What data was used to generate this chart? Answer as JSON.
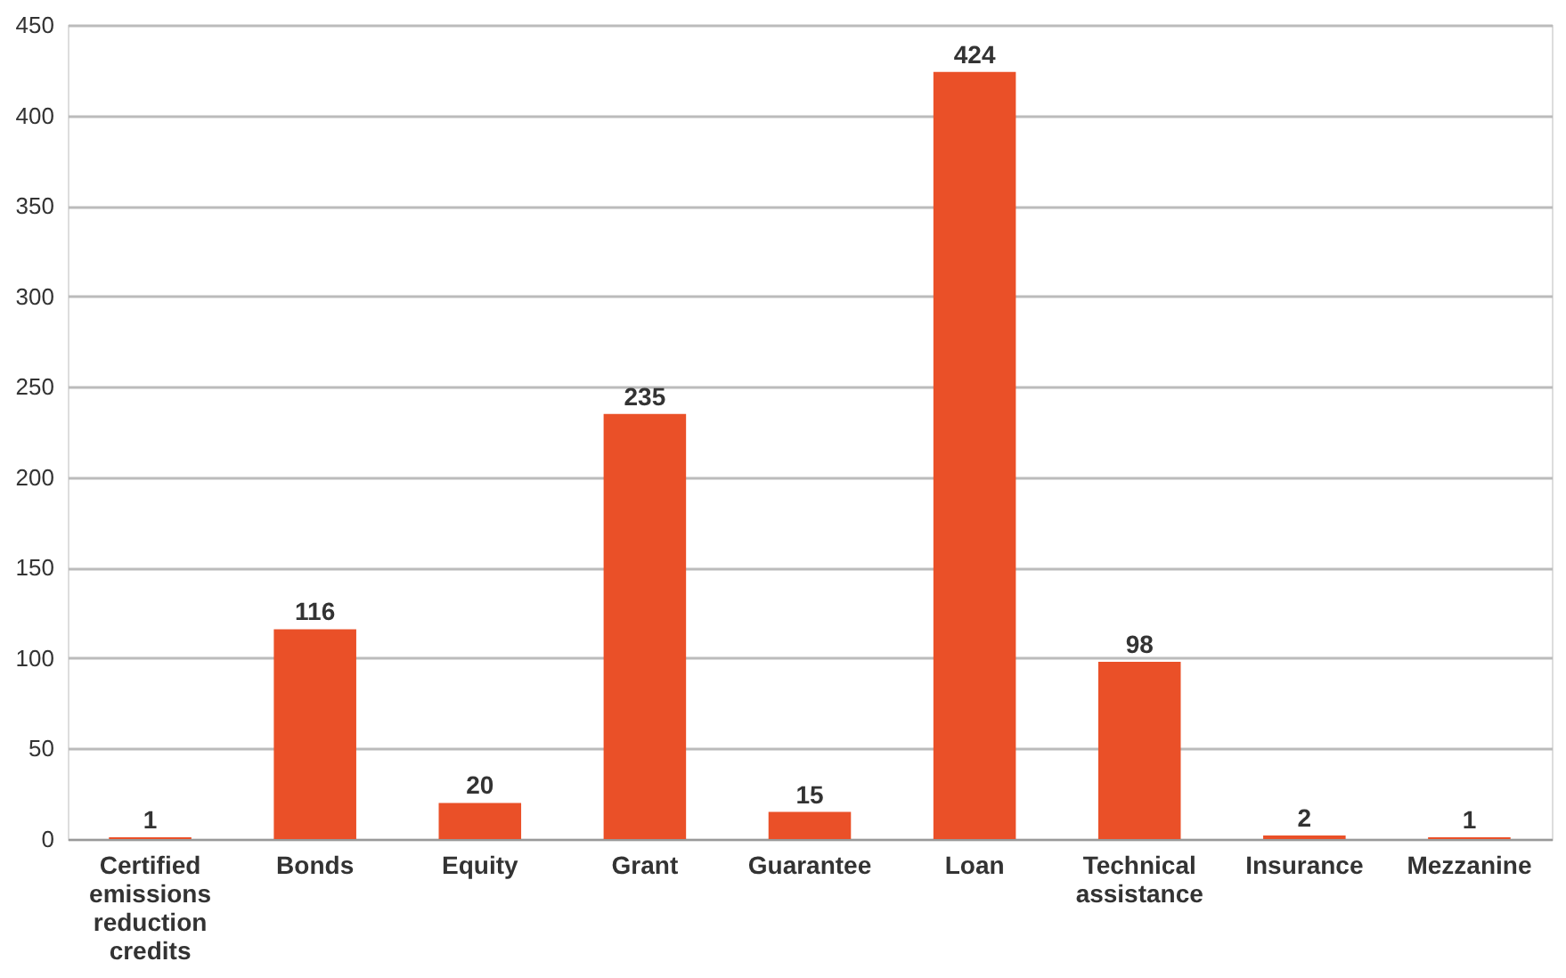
{
  "chart_data": {
    "type": "bar",
    "categories": [
      "Certified emissions reduction credits",
      "Bonds",
      "Equity",
      "Grant",
      "Guarantee",
      "Loan",
      "Technical assistance",
      "Insurance",
      "Mezzanine"
    ],
    "values": [
      1,
      116,
      20,
      235,
      15,
      424,
      98,
      2,
      1
    ],
    "color": "#ea5028",
    "ylim": [
      0,
      450
    ],
    "yticks": [
      0,
      50,
      100,
      150,
      200,
      250,
      300,
      350,
      400,
      450
    ],
    "grid": "y",
    "data_labels": true
  }
}
